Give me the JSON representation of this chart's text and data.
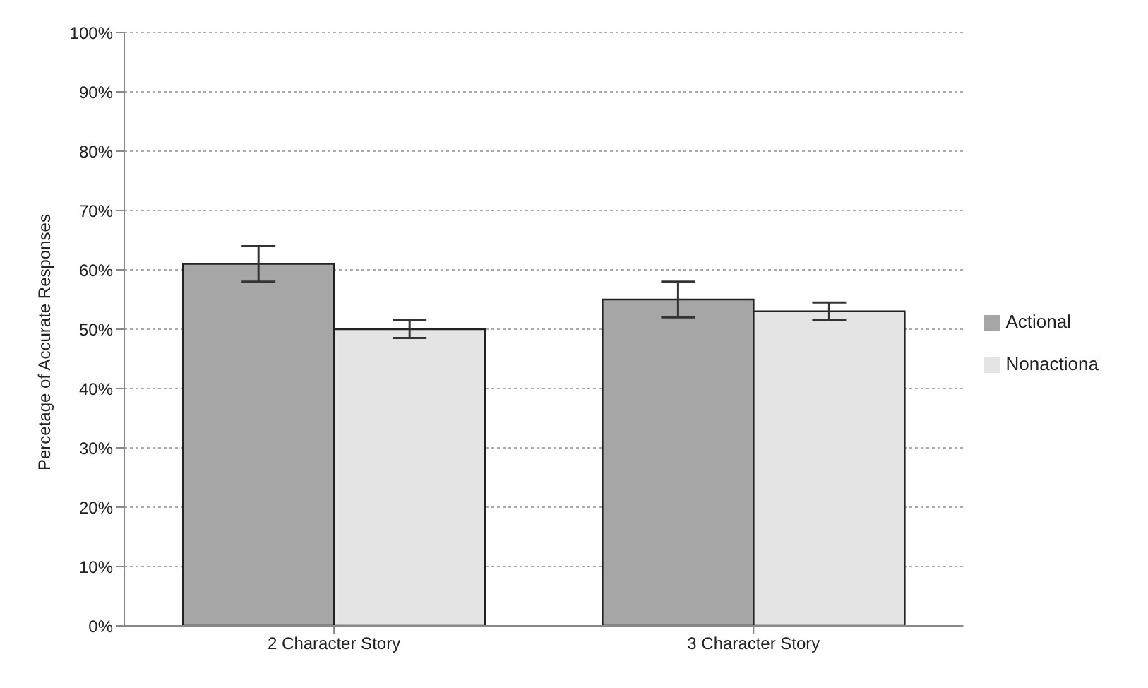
{
  "chart_data": {
    "type": "bar",
    "ylabel": "Percetage of Accurate Responses",
    "categories": [
      "2 Character Story",
      "3 Character Story"
    ],
    "series": [
      {
        "name": "Actional",
        "color": "#a6a6a6",
        "values": [
          61,
          55
        ],
        "errors": [
          3,
          3
        ]
      },
      {
        "name": "Nonactiona",
        "color": "#e4e4e4",
        "values": [
          50,
          53
        ],
        "errors": [
          1.5,
          1.5
        ]
      }
    ],
    "ylim": [
      0,
      100
    ],
    "yticks": [
      {
        "value": 0,
        "label": "0%"
      },
      {
        "value": 10,
        "label": "10%"
      },
      {
        "value": 20,
        "label": "20%"
      },
      {
        "value": 30,
        "label": "30%"
      },
      {
        "value": 40,
        "label": "40%"
      },
      {
        "value": 50,
        "label": "50%"
      },
      {
        "value": 60,
        "label": "60%"
      },
      {
        "value": 70,
        "label": "70%"
      },
      {
        "value": 80,
        "label": "80%"
      },
      {
        "value": 90,
        "label": "90%"
      },
      {
        "value": 100,
        "label": "100%"
      }
    ],
    "grid": "y",
    "legend": "right"
  }
}
